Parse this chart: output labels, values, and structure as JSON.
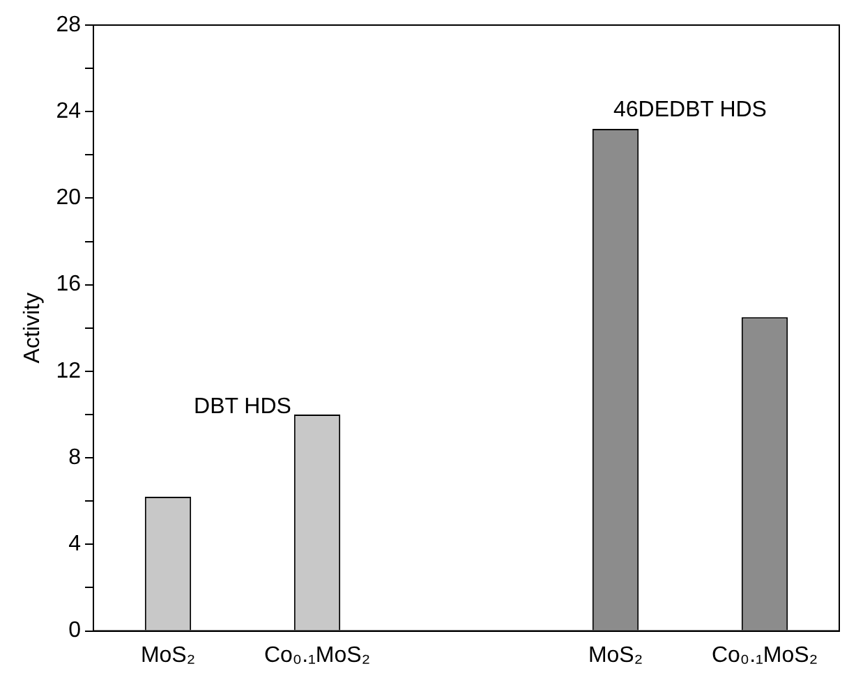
{
  "chart_data": {
    "type": "bar",
    "ylabel": "Activity",
    "categories": [
      "MoS₂",
      "Co₀.₁MoS₂",
      null,
      "MoS₂",
      "Co₀.₁MoS₂"
    ],
    "values": [
      6.2,
      10.0,
      null,
      23.2,
      14.5
    ],
    "colors": [
      "#c8c8c8",
      "#c8c8c8",
      "#8c8c8c",
      "#8c8c8c",
      "#8c8c8c"
    ],
    "ylim": [
      0,
      28
    ],
    "yticks": [
      0,
      {
        "value": 2,
        "label": null
      },
      4,
      {
        "value": 6,
        "label": null
      },
      8,
      {
        "value": 10,
        "label": null
      },
      12,
      {
        "value": 14,
        "label": null
      },
      16,
      {
        "value": 18,
        "label": null
      },
      20,
      {
        "value": 22,
        "label": null
      },
      24,
      {
        "value": 26,
        "label": null
      },
      28
    ],
    "annotations": [
      "DBT HDS",
      "46DEDBT HDS"
    ],
    "grid": false,
    "legend": false
  }
}
